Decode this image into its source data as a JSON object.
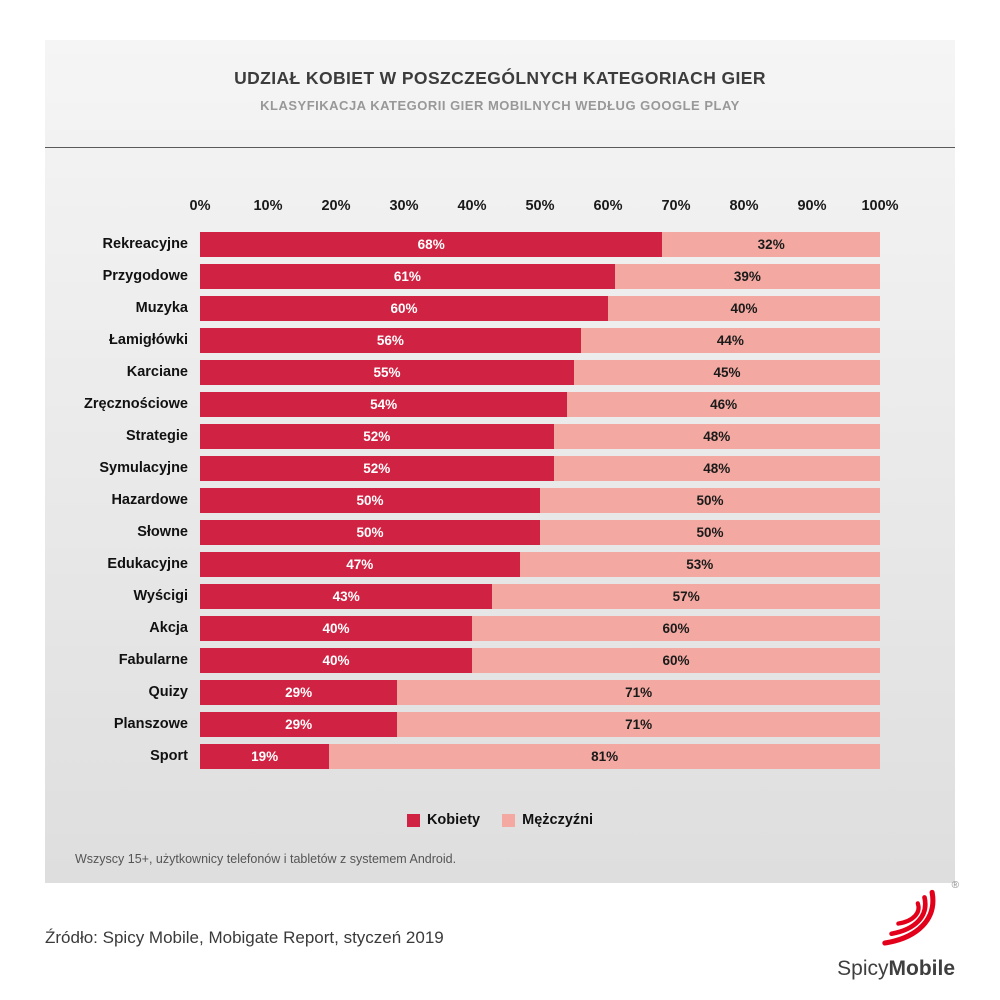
{
  "panel": {
    "title": "UDZIAŁ KOBIET W POSZCZEGÓLNYCH KATEGORIACH GIER",
    "subtitle": "KLASYFIKACJA KATEGORII GIER MOBILNYCH WEDŁUG GOOGLE PLAY",
    "footnote": "Wszyscy 15+, użytkownicy telefonów i tabletów z systemem Android."
  },
  "chart_data": {
    "type": "bar",
    "orientation": "horizontal",
    "stacked": true,
    "categories": [
      "Rekreacyjne",
      "Przygodowe",
      "Muzyka",
      "Łamigłówki",
      "Karciane",
      "Zręcznościowe",
      "Strategie",
      "Symulacyjne",
      "Hazardowe",
      "Słowne",
      "Edukacyjne",
      "Wyścigi",
      "Akcja",
      "Fabularne",
      "Quizy",
      "Planszowe",
      "Sport"
    ],
    "series": [
      {
        "name": "Kobiety",
        "color": "#d02343",
        "label_color": "#ffffff",
        "values": [
          68,
          61,
          60,
          56,
          55,
          54,
          52,
          52,
          50,
          50,
          47,
          43,
          40,
          40,
          29,
          29,
          19
        ]
      },
      {
        "name": "Mężczyźni",
        "color": "#f3a9a1",
        "label_color": "#1a1a1a",
        "values": [
          32,
          39,
          40,
          44,
          45,
          46,
          48,
          48,
          50,
          50,
          53,
          57,
          60,
          60,
          71,
          71,
          81
        ]
      }
    ],
    "x_ticks": [
      "0%",
      "10%",
      "20%",
      "30%",
      "40%",
      "50%",
      "60%",
      "70%",
      "80%",
      "90%",
      "100%"
    ],
    "xlim": [
      0,
      100
    ],
    "legend_position": "bottom",
    "value_label_format": "percent",
    "grid": false
  },
  "footer": {
    "source": "Źródło: Spicy Mobile, Mobigate Report, styczeń 2019",
    "logo": {
      "brand_first": "Spicy",
      "brand_second": "Mobile",
      "registered": "®"
    }
  }
}
